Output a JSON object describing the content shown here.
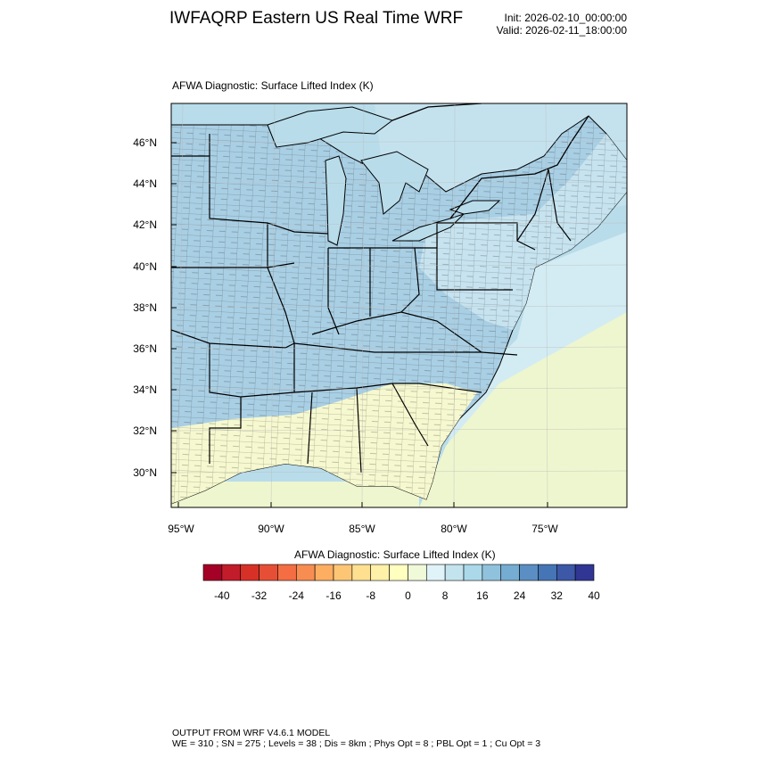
{
  "header": {
    "title": "IWFAQRP Eastern US Real Time WRF",
    "init": "Init: 2026-02-10_00:00:00",
    "valid": "Valid: 2026-02-11_18:00:00"
  },
  "map": {
    "panel_title": "AFWA Diagnostic: Surface Lifted Index   (K)",
    "lat_labels": [
      "46°N",
      "44°N",
      "42°N",
      "40°N",
      "38°N",
      "36°N",
      "34°N",
      "32°N",
      "30°N"
    ],
    "lon_labels": [
      "95°W",
      "90°W",
      "85°W",
      "80°W",
      "75°W"
    ],
    "colors": {
      "ocean": "#b8dcea",
      "land_blue": "#a9cfe4",
      "land_light": "#cde8f0",
      "land_yellow": "#f6f8cf",
      "warm_gulf": "#eef6cf"
    }
  },
  "colorbar": {
    "title": "AFWA Diagnostic: Surface Lifted Index  (K)",
    "tick_labels": [
      "-40",
      "-32",
      "-24",
      "-16",
      "-8",
      "0",
      "8",
      "16",
      "24",
      "32",
      "40"
    ],
    "colors": [
      "#a50026",
      "#c21c2a",
      "#d73027",
      "#e64f35",
      "#f46d43",
      "#f88d52",
      "#fdae61",
      "#fdc675",
      "#fee090",
      "#fff1a8",
      "#ffffbf",
      "#f0f9d8",
      "#e0f3f8",
      "#c3e4ef",
      "#abd9e9",
      "#90c2dd",
      "#74add1",
      "#5b8fc3",
      "#4575b4",
      "#3c58a6",
      "#313695"
    ]
  },
  "footer": {
    "line1": "OUTPUT FROM WRF V4.6.1 MODEL",
    "line2": "WE = 310 ; SN = 275 ; Levels = 38 ; Dis = 8km ; Phys Opt = 8 ; PBL Opt = 1 ; Cu Opt = 3"
  }
}
